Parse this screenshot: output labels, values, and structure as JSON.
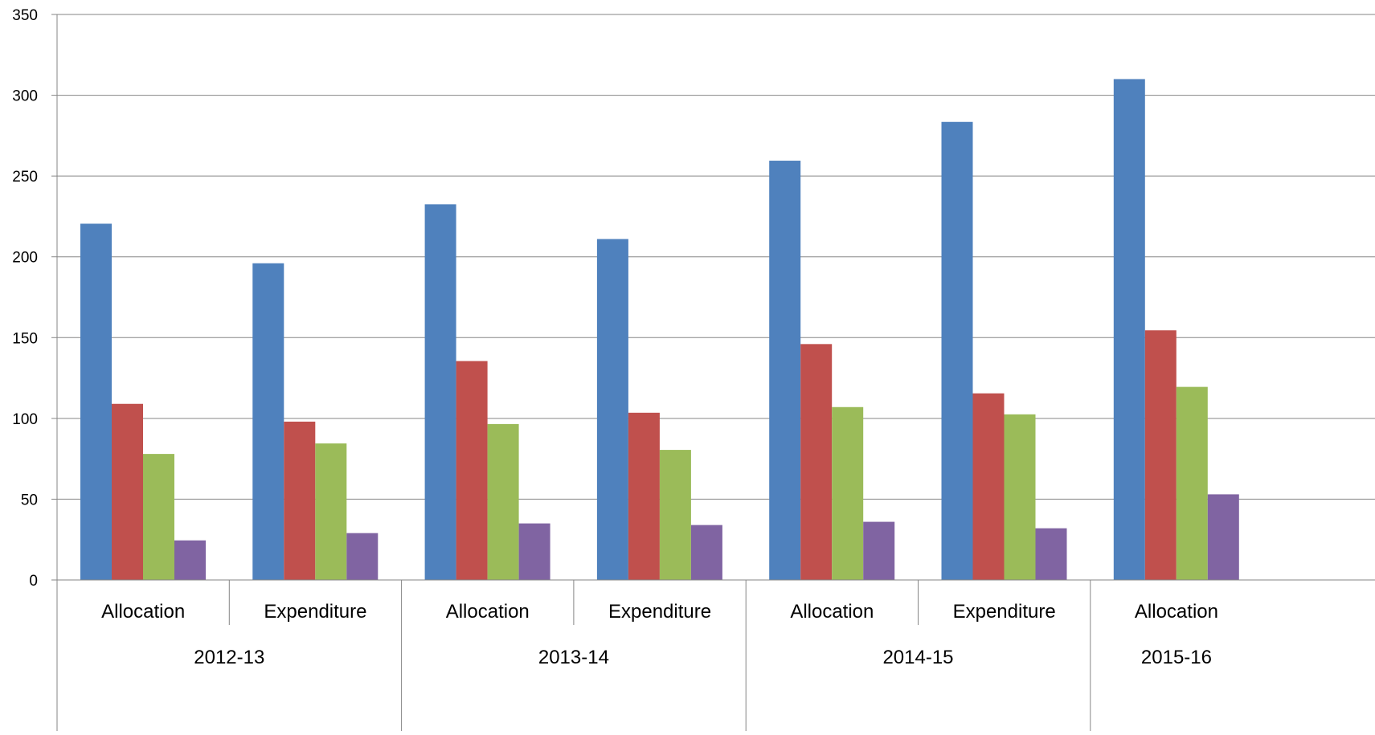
{
  "chart_data": {
    "type": "bar",
    "title": "",
    "xlabel": "",
    "ylabel": "",
    "ylim": [
      0,
      350
    ],
    "yticks": [
      0,
      50,
      100,
      150,
      200,
      250,
      300,
      350
    ],
    "grid": true,
    "legend": "none",
    "categories": [
      {
        "label": "Allocation",
        "group": "2012-13"
      },
      {
        "label": "Expenditure",
        "group": "2012-13"
      },
      {
        "label": "Allocation",
        "group": "2013-14"
      },
      {
        "label": "Expenditure",
        "group": "2013-14"
      },
      {
        "label": "Allocation",
        "group": "2014-15"
      },
      {
        "label": "Expenditure",
        "group": "2014-15"
      },
      {
        "label": "Allocation",
        "group": "2015-16"
      }
    ],
    "groups": [
      "2012-13",
      "2013-14",
      "2014-15",
      "2015-16"
    ],
    "series": [
      {
        "color": "#4F81BD",
        "values": [
          220.5,
          196,
          232.5,
          211,
          259.5,
          283.5,
          310
        ]
      },
      {
        "color": "#C0504D",
        "values": [
          109,
          98,
          135.5,
          103.5,
          146,
          115.5,
          154.5
        ]
      },
      {
        "color": "#9BBB59",
        "values": [
          78,
          84.5,
          96.5,
          80.5,
          107,
          102.5,
          119.5
        ]
      },
      {
        "color": "#8064A2",
        "values": [
          24.5,
          29,
          35,
          34,
          36,
          32,
          53
        ]
      }
    ]
  }
}
